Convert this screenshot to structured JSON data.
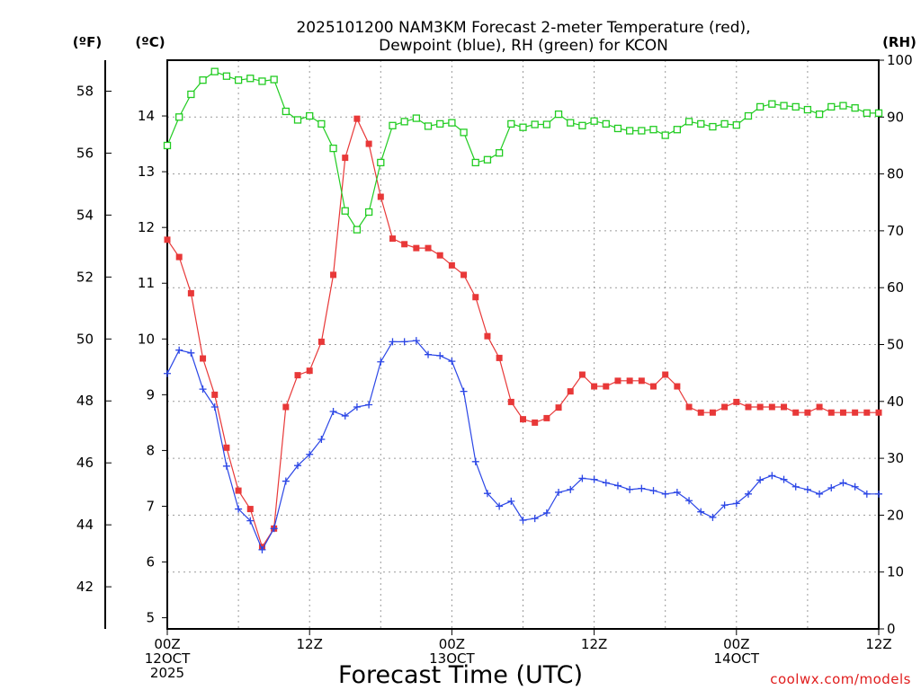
{
  "chart_data": {
    "type": "line",
    "title_lines": [
      "2025101200 NAM3KM Forecast 2-meter Temperature (red),",
      "Dewpoint (blue), RH (green) for KCON"
    ],
    "xlabel": "Forecast Time (UTC)",
    "credit": "coolwx.com/models",
    "axes": {
      "x": {
        "unit": "hour",
        "range": [
          0,
          60
        ],
        "ticks": [
          {
            "h": 0,
            "lines": [
              "00Z",
              "12OCT",
              "2025"
            ]
          },
          {
            "h": 12,
            "lines": [
              "12Z"
            ]
          },
          {
            "h": 24,
            "lines": [
              "00Z",
              "13OCT"
            ]
          },
          {
            "h": 36,
            "lines": [
              "12Z"
            ]
          },
          {
            "h": 48,
            "lines": [
              "00Z",
              "14OCT"
            ]
          },
          {
            "h": 60,
            "lines": [
              "12Z"
            ]
          }
        ]
      },
      "celsius": {
        "label": "(ºC)",
        "range": [
          4.8,
          15.0
        ],
        "ticks": [
          5,
          6,
          7,
          8,
          9,
          10,
          11,
          12,
          13,
          14
        ]
      },
      "fahrenheit": {
        "label": "(ºF)",
        "ticks": [
          42,
          44,
          46,
          48,
          50,
          52,
          54,
          56,
          58
        ]
      },
      "rh": {
        "label": "(RH)",
        "range": [
          0,
          100
        ],
        "ticks": [
          0,
          10,
          20,
          30,
          40,
          50,
          60,
          70,
          80,
          90,
          100
        ]
      }
    },
    "series": [
      {
        "name": "2-meter Temperature",
        "unit": "C",
        "color": "#e83838",
        "marker": "filled-square",
        "values": [
          11.78,
          11.47,
          10.82,
          9.65,
          9.0,
          8.05,
          7.28,
          6.95,
          6.27,
          6.6,
          8.78,
          9.35,
          9.43,
          9.95,
          11.15,
          13.25,
          13.95,
          13.5,
          12.55,
          11.8,
          11.7,
          11.63,
          11.63,
          11.5,
          11.32,
          11.15,
          10.75,
          10.05,
          9.66,
          8.87,
          8.56,
          8.5,
          8.58,
          8.77,
          9.06,
          9.36,
          9.15,
          9.15,
          9.25,
          9.25,
          9.25,
          9.15,
          9.36,
          9.15,
          8.78,
          8.68,
          8.68,
          8.78,
          8.87,
          8.78,
          8.78,
          8.78,
          8.78,
          8.68,
          8.68,
          8.78,
          8.68,
          8.68,
          8.68,
          8.68,
          8.68
        ]
      },
      {
        "name": "Dewpoint",
        "unit": "C",
        "color": "#2b46e6",
        "marker": "plus",
        "values": [
          9.38,
          9.8,
          9.75,
          9.1,
          8.78,
          7.72,
          6.95,
          6.74,
          6.22,
          6.6,
          7.45,
          7.73,
          7.93,
          8.2,
          8.7,
          8.62,
          8.78,
          8.82,
          9.59,
          9.95,
          9.95,
          9.97,
          9.72,
          9.7,
          9.6,
          9.06,
          7.8,
          7.23,
          7.0,
          7.09,
          6.75,
          6.78,
          6.88,
          7.25,
          7.3,
          7.5,
          7.48,
          7.42,
          7.37,
          7.3,
          7.32,
          7.28,
          7.22,
          7.25,
          7.1,
          6.9,
          6.8,
          7.02,
          7.05,
          7.22,
          7.47,
          7.55,
          7.48,
          7.35,
          7.3,
          7.22,
          7.33,
          7.42,
          7.35,
          7.22,
          7.22
        ]
      },
      {
        "name": "RH",
        "unit": "%",
        "color": "#22cc22",
        "marker": "open-square",
        "values": [
          85,
          90,
          94,
          96.5,
          98,
          97.2,
          96.5,
          96.8,
          96.3,
          96.6,
          91,
          89.5,
          90.2,
          88.8,
          84.5,
          73.5,
          70.2,
          73.3,
          82,
          88.5,
          89.2,
          89.8,
          88.4,
          88.8,
          89,
          87.3,
          82,
          82.5,
          83.7,
          88.8,
          88.2,
          88.7,
          88.7,
          90.5,
          89,
          88.5,
          89.3,
          88.8,
          88,
          87.6,
          87.6,
          87.8,
          86.8,
          87.8,
          89.2,
          88.8,
          88.3,
          88.8,
          88.6,
          90.2,
          91.8,
          92.3,
          92,
          91.8,
          91.3,
          90.5,
          91.8,
          92,
          91.6,
          90.7,
          90.7
        ]
      }
    ],
    "grid": true
  }
}
